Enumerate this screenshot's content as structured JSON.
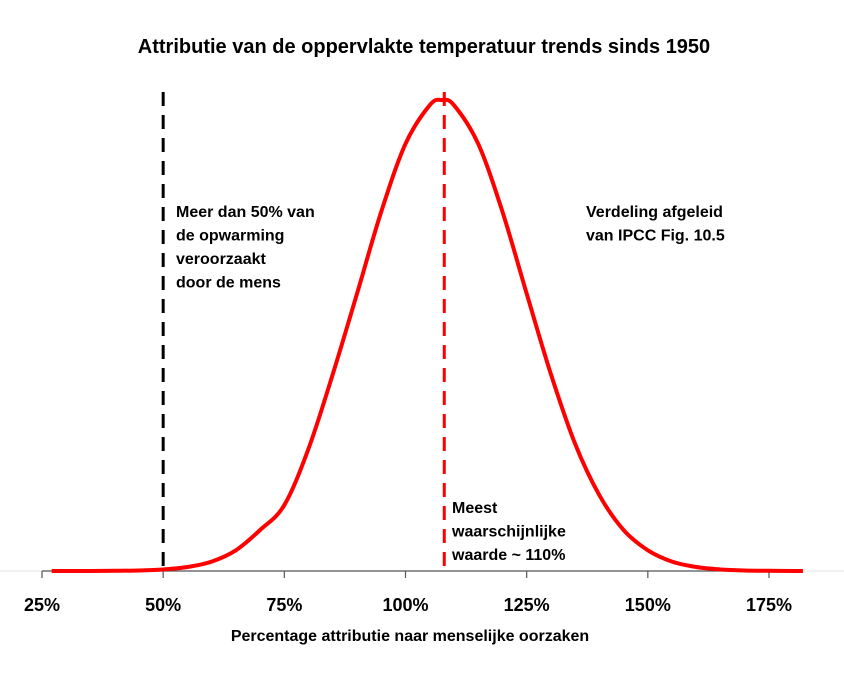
{
  "chart_data": {
    "type": "line",
    "title": "Attributie van de oppervlakte temperatuur trends sinds 1950",
    "xlabel": "Percentage attributie naar menselijke oorzaken",
    "ylabel": "",
    "xlim": [
      25,
      182
    ],
    "ylim": [
      0,
      1
    ],
    "grid": false,
    "x_ticks": [
      25,
      50,
      75,
      100,
      125,
      150,
      175
    ],
    "x_tick_labels": [
      "25%",
      "50%",
      "75%",
      "100%",
      "125%",
      "150%",
      "175%"
    ],
    "series": [
      {
        "name": "Verdeling",
        "color": "#ff0000",
        "x": [
          27,
          30,
          35,
          40,
          45,
          50,
          55,
          60,
          65,
          70,
          75,
          80,
          85,
          90,
          95,
          100,
          105,
          107.5,
          110,
          115,
          120,
          125,
          130,
          135,
          140,
          145,
          150,
          155,
          160,
          165,
          170,
          175,
          180,
          182
        ],
        "y": [
          0,
          0,
          0.0001,
          0.0004,
          0.0011,
          0.0033,
          0.0085,
          0.02,
          0.044,
          0.087,
          0.14,
          0.26,
          0.418,
          0.589,
          0.763,
          0.907,
          0.989,
          1,
          0.989,
          0.907,
          0.763,
          0.589,
          0.418,
          0.27,
          0.161,
          0.087,
          0.044,
          0.02,
          0.0085,
          0.0033,
          0.0011,
          0.0004,
          0.0001,
          0
        ]
      }
    ],
    "vlines": [
      {
        "x": 50,
        "color": "#000000",
        "style": "dashed"
      },
      {
        "x": 108,
        "color": "#ff0000",
        "style": "dashed"
      }
    ],
    "annotations": {
      "left": [
        "Meer dan 50% van",
        "de opwarming",
        "veroorzaakt",
        "door de mens"
      ],
      "right": [
        "Verdeling afgeleid",
        "van IPCC Fig. 10.5"
      ],
      "bottom": [
        "Meest",
        "waarschijnlijke",
        "waarde ~ 110%"
      ]
    }
  }
}
